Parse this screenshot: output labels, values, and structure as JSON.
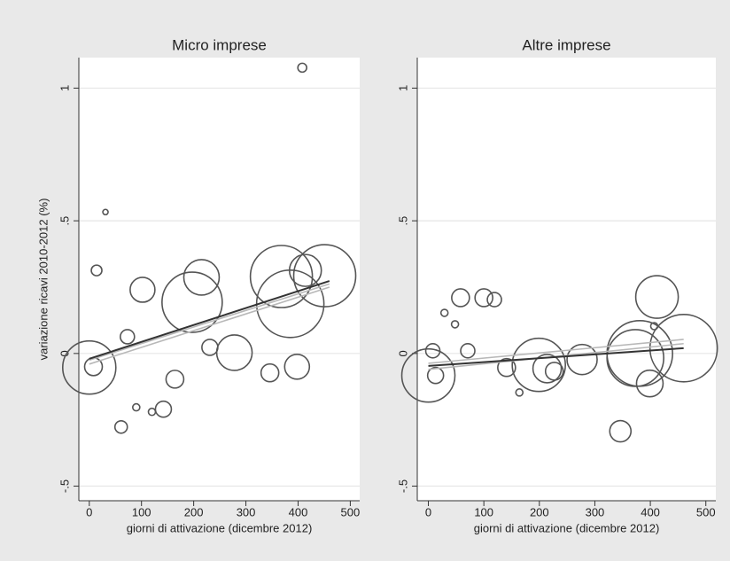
{
  "chart_data": [
    {
      "type": "scatter",
      "title": "Micro imprese",
      "ylabel": "variazione ricavi 2010-2012 (%)",
      "xlabel": "giorni di attivazione (dicembre 2012)",
      "xlim": [
        -20,
        518
      ],
      "ylim": [
        -0.555,
        1.115
      ],
      "xticks": [
        0,
        100,
        200,
        300,
        400,
        500
      ],
      "yticks": [
        {
          "value": -0.5,
          "label": "-.5"
        },
        0,
        {
          "value": 0.5,
          "label": ".5"
        },
        1
      ],
      "grid": true,
      "color": "#555555",
      "x": [
        0,
        8,
        14,
        31,
        73,
        102,
        90,
        120,
        142,
        61,
        164,
        215,
        197,
        231,
        278,
        346,
        398,
        414,
        451,
        368,
        385,
        408
      ],
      "y": [
        -0.053,
        -0.05,
        0.313,
        0.533,
        0.063,
        0.24,
        -0.203,
        -0.22,
        -0.21,
        -0.277,
        -0.097,
        0.287,
        0.193,
        0.023,
        0.003,
        -0.073,
        -0.05,
        0.313,
        0.293,
        0.29,
        0.187,
        1.077
      ],
      "sizes": [
        30,
        10,
        6,
        3,
        8,
        14,
        4,
        4,
        9,
        7,
        10,
        20,
        34,
        9,
        20,
        10,
        14,
        18,
        35,
        35,
        38,
        5
      ],
      "fit_lines": [
        {
          "x": [
            0,
            460
          ],
          "y": [
            -0.04,
            0.25
          ],
          "color": "#b8b8b8"
        },
        {
          "x": [
            0,
            460
          ],
          "y": [
            -0.025,
            0.262
          ],
          "color": "#b8b8b8"
        },
        {
          "x": [
            0,
            460
          ],
          "y": [
            -0.02,
            0.273
          ],
          "color": "#333333"
        }
      ]
    },
    {
      "type": "scatter",
      "title": "Altre imprese",
      "xlabel": "giorni di attivazione (dicembre 2012)",
      "xlim": [
        -20,
        518
      ],
      "ylim": [
        -0.555,
        1.115
      ],
      "xticks": [
        0,
        100,
        200,
        300,
        400,
        500
      ],
      "yticks": [
        {
          "value": -0.5,
          "label": "-.5"
        },
        0,
        {
          "value": 0.5,
          "label": ".5"
        },
        1
      ],
      "grid": true,
      "color": "#555555",
      "x": [
        0,
        8,
        13,
        29,
        48,
        58,
        71,
        100,
        119,
        141,
        164,
        199,
        214,
        227,
        277,
        346,
        373,
        381,
        399,
        407,
        412,
        460
      ],
      "y": [
        -0.083,
        0.01,
        -0.083,
        0.153,
        0.11,
        0.21,
        0.01,
        0.21,
        0.203,
        -0.053,
        -0.147,
        -0.043,
        -0.057,
        -0.067,
        -0.023,
        -0.293,
        -0.017,
        0,
        -0.113,
        0.103,
        0.213,
        0.02
      ],
      "sizes": [
        30,
        8,
        9,
        4,
        4,
        10,
        8,
        10,
        8,
        10,
        4,
        30,
        16,
        10,
        17,
        12,
        32,
        37,
        15,
        4,
        24,
        38
      ],
      "fit_lines": [
        {
          "x": [
            0,
            460
          ],
          "y": [
            -0.06,
            0.037
          ],
          "color": "#b8b8b8"
        },
        {
          "x": [
            0,
            460
          ],
          "y": [
            -0.037,
            0.053
          ],
          "color": "#b8b8b8"
        },
        {
          "x": [
            0,
            460
          ],
          "y": [
            -0.047,
            0.02
          ],
          "color": "#333333"
        }
      ]
    }
  ]
}
